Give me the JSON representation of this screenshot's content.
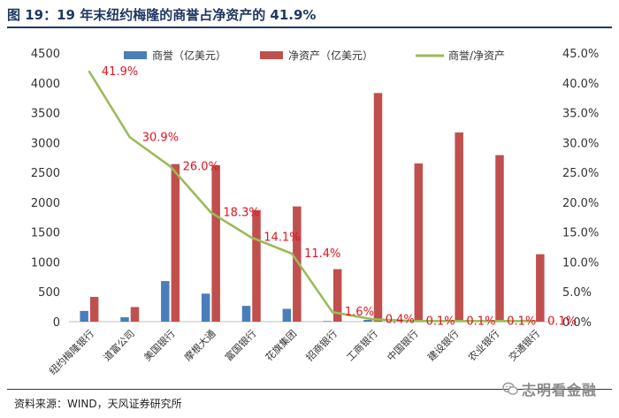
{
  "header": {
    "title": "图 19：19 年末纽约梅隆的商誉占净资产的 41.9%"
  },
  "footer": {
    "source": "资料来源：WIND，天风证券研究所",
    "watermark": "志明看金融"
  },
  "chart_data": {
    "type": "bar",
    "categories": [
      "纽约梅隆银行",
      "道富公司",
      "美国银行",
      "摩根大通",
      "富国银行",
      "花旗集团",
      "招商银行",
      "工商银行",
      "中国银行",
      "建设银行",
      "农业银行",
      "交通银行"
    ],
    "series": [
      {
        "name": "商誉（亿美元）",
        "type": "bar",
        "axis": "left",
        "color": "#4a7ebb",
        "values": [
          180,
          75,
          680,
          470,
          265,
          215,
          10,
          30,
          10,
          8,
          5,
          5
        ]
      },
      {
        "name": "净资产（亿美元）",
        "type": "bar",
        "axis": "left",
        "color": "#c0504d",
        "values": [
          415,
          245,
          2640,
          2620,
          1870,
          1930,
          880,
          3830,
          2650,
          3170,
          2790,
          1130
        ]
      },
      {
        "name": "商誉/净资产",
        "type": "line",
        "axis": "right",
        "color": "#9bbb59",
        "values": [
          41.9,
          30.9,
          26.0,
          18.3,
          14.1,
          11.4,
          1.6,
          0.4,
          0.1,
          0.1,
          0.1,
          0.1
        ]
      }
    ],
    "data_labels": [
      "41.9%",
      "30.9%",
      "26.0%",
      "18.3%",
      "14.1%",
      "11.4%",
      "1.6%",
      "0.4%",
      "0.1%",
      "0.1%",
      "0.1%",
      "0.1%"
    ],
    "label_color": "#e0141e",
    "ylim_left": [
      0,
      4500
    ],
    "yticks_left": [
      "0",
      "500",
      "1000",
      "1500",
      "2000",
      "2500",
      "3000",
      "3500",
      "4000",
      "4500"
    ],
    "ylim_right": [
      0,
      45
    ],
    "yticks_right": [
      "0.0%",
      "5.0%",
      "10.0%",
      "15.0%",
      "20.0%",
      "25.0%",
      "30.0%",
      "35.0%",
      "40.0%",
      "45.0%"
    ],
    "legend_position": "top"
  }
}
